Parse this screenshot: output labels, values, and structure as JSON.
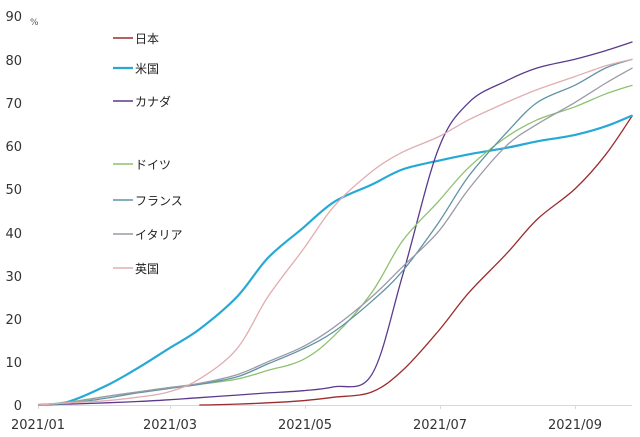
{
  "chart_data": {
    "type": "line",
    "title": "",
    "xlabel": "",
    "ylabel": "%",
    "ylim": [
      0,
      90
    ],
    "yticks": [
      0,
      10,
      20,
      30,
      40,
      50,
      60,
      70,
      80,
      90
    ],
    "xticks": [
      "2021/01",
      "2021/03",
      "2021/05",
      "2021/07",
      "2021/09"
    ],
    "grid": false,
    "legend_position": "upper-left-inside",
    "x": [
      "2021-01-01",
      "2021-01-15",
      "2021-02-01",
      "2021-02-15",
      "2021-03-01",
      "2021-03-15",
      "2021-04-01",
      "2021-04-15",
      "2021-05-01",
      "2021-05-15",
      "2021-06-01",
      "2021-06-15",
      "2021-07-01",
      "2021-07-15",
      "2021-08-01",
      "2021-08-15",
      "2021-09-01",
      "2021-09-15",
      "2021-09-27"
    ],
    "series": [
      {
        "name": "日本",
        "color": "#9B2D2D",
        "width": 1.3,
        "values": [
          null,
          null,
          null,
          null,
          null,
          0.0,
          0.2,
          0.5,
          1.0,
          1.8,
          3.0,
          8.0,
          17.0,
          26.0,
          35.0,
          43.0,
          50.0,
          58.0,
          67.0
        ]
      },
      {
        "name": "米国",
        "color": "#27A9D6",
        "width": 2.2,
        "values": [
          0.0,
          0.8,
          4.5,
          8.5,
          13.0,
          17.5,
          25.0,
          34.0,
          41.0,
          47.0,
          51.0,
          54.5,
          56.5,
          58.0,
          59.5,
          61.0,
          62.5,
          64.5,
          67.0
        ]
      },
      {
        "name": "カナダ",
        "color": "#5B3A8C",
        "width": 1.3,
        "values": [
          0.0,
          0.2,
          0.5,
          0.8,
          1.2,
          1.7,
          2.3,
          2.8,
          3.3,
          4.2,
          7.0,
          30.0,
          59.0,
          70.0,
          75.0,
          78.0,
          80.0,
          82.0,
          84.0
        ]
      },
      {
        "name": "ドイツ",
        "color": "#8DC26F",
        "width": 1.3,
        "values": [
          0.0,
          0.7,
          2.0,
          3.0,
          4.0,
          4.8,
          6.0,
          8.0,
          10.5,
          16.0,
          26.0,
          38.0,
          47.0,
          55.0,
          62.0,
          66.0,
          69.0,
          72.0,
          74.0
        ]
      },
      {
        "name": "フランス",
        "color": "#5F93A5",
        "width": 1.3,
        "values": [
          0.0,
          0.4,
          1.6,
          2.8,
          3.8,
          4.8,
          6.5,
          9.5,
          13.0,
          17.0,
          24.0,
          31.0,
          42.0,
          53.0,
          63.0,
          70.0,
          74.0,
          78.0,
          80.0
        ]
      },
      {
        "name": "イタリア",
        "color": "#9A9AA8",
        "width": 1.3,
        "values": [
          0.0,
          0.6,
          2.0,
          3.0,
          4.0,
          5.0,
          7.0,
          10.0,
          13.5,
          18.0,
          25.0,
          32.0,
          40.0,
          50.0,
          60.0,
          65.0,
          70.0,
          74.5,
          78.0
        ]
      },
      {
        "name": "英国",
        "color": "#E2ADB0",
        "width": 1.3,
        "values": [
          0.0,
          0.5,
          1.0,
          1.8,
          3.0,
          6.0,
          13.0,
          25.0,
          36.0,
          46.0,
          54.0,
          58.5,
          62.0,
          66.0,
          70.0,
          73.0,
          76.0,
          78.5,
          80.0
        ]
      }
    ]
  },
  "axes": {
    "unit_label": "%",
    "y_tick_labels": [
      "0",
      "10",
      "20",
      "30",
      "40",
      "50",
      "60",
      "70",
      "80",
      "90"
    ],
    "x_tick_labels": [
      "2021/01",
      "2021/03",
      "2021/05",
      "2021/07",
      "2021/09"
    ]
  },
  "legend": {
    "items": [
      {
        "label": "日本",
        "color": "#9B2D2D"
      },
      {
        "label": "米国",
        "color": "#27A9D6"
      },
      {
        "label": "カナダ",
        "color": "#5B3A8C"
      },
      {
        "label": "ドイツ",
        "color": "#8DC26F"
      },
      {
        "label": "フランス",
        "color": "#5F93A5"
      },
      {
        "label": "イタリア",
        "color": "#9A9AA8"
      },
      {
        "label": "英国",
        "color": "#E2ADB0"
      }
    ]
  }
}
